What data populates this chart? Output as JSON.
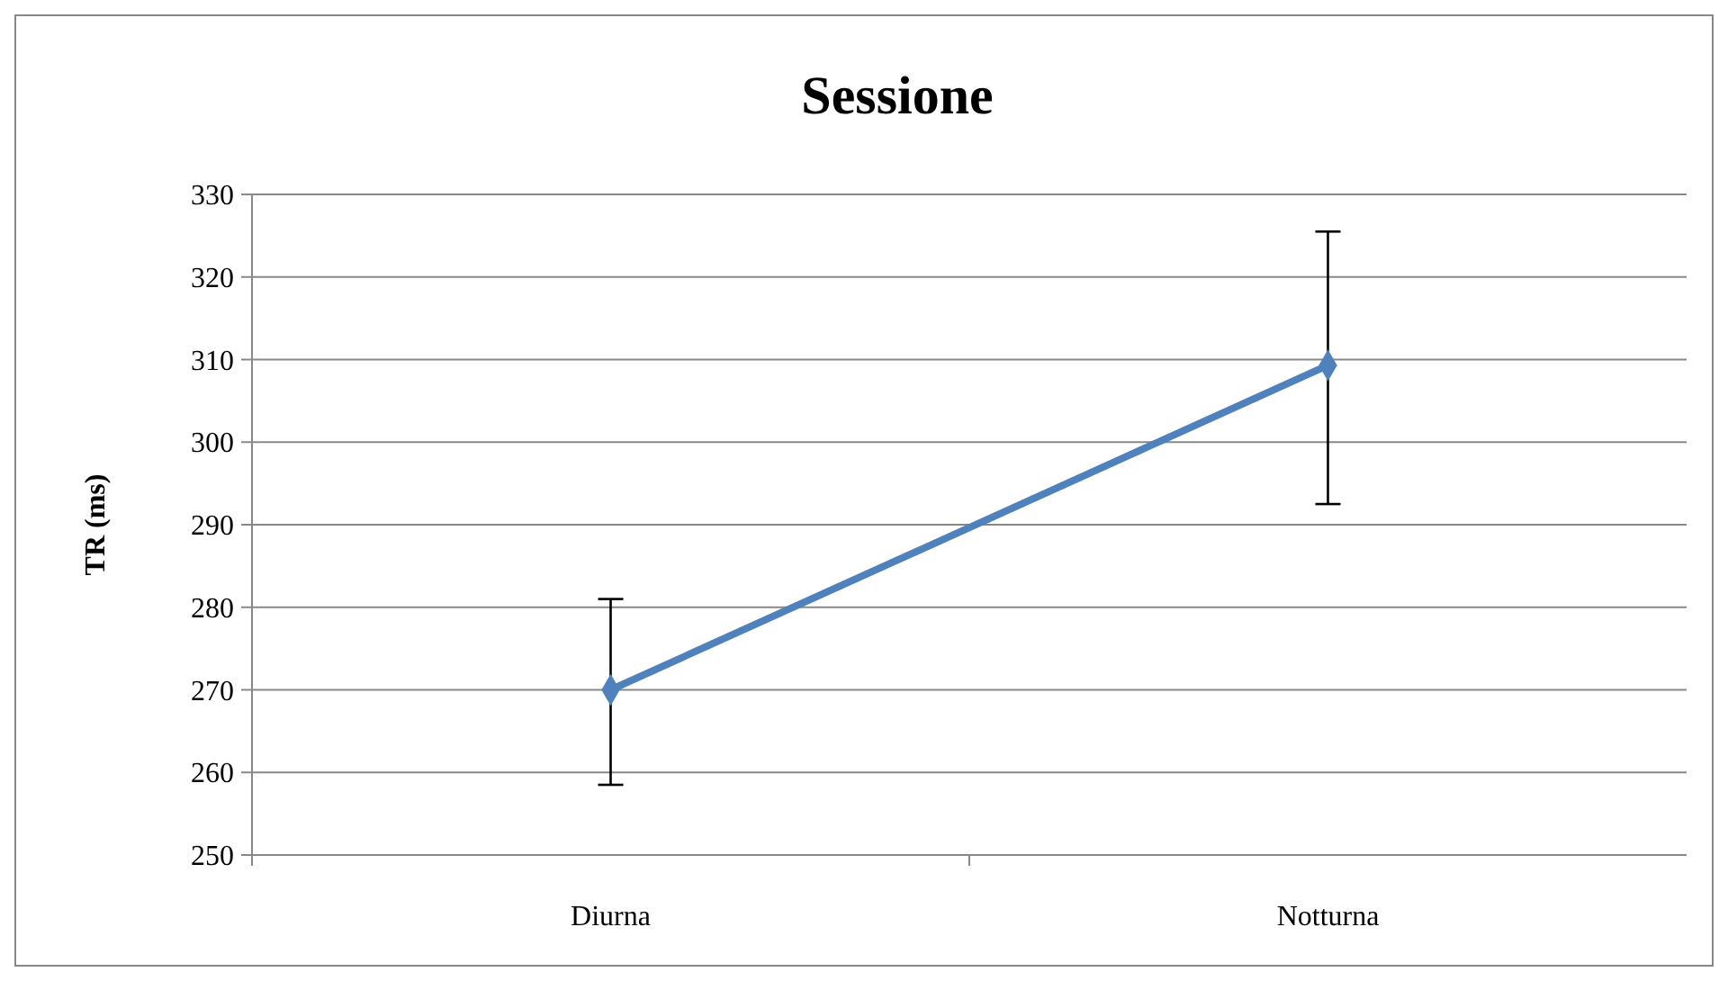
{
  "chart_data": {
    "type": "line",
    "title": "Sessione",
    "ylabel": "TR (ms)",
    "categories": [
      "Diurna",
      "Notturna"
    ],
    "series": [
      {
        "color": "#4f81bd",
        "values": [
          270,
          309.3
        ],
        "errors": [
          [
            258.5,
            281
          ],
          [
            292.5,
            325.5
          ]
        ]
      }
    ],
    "ylim": [
      250,
      330
    ],
    "yticks": [
      250,
      260,
      270,
      280,
      290,
      300,
      310,
      320,
      330
    ],
    "grid": "y",
    "marker": "diamond",
    "line_style": "solid"
  }
}
